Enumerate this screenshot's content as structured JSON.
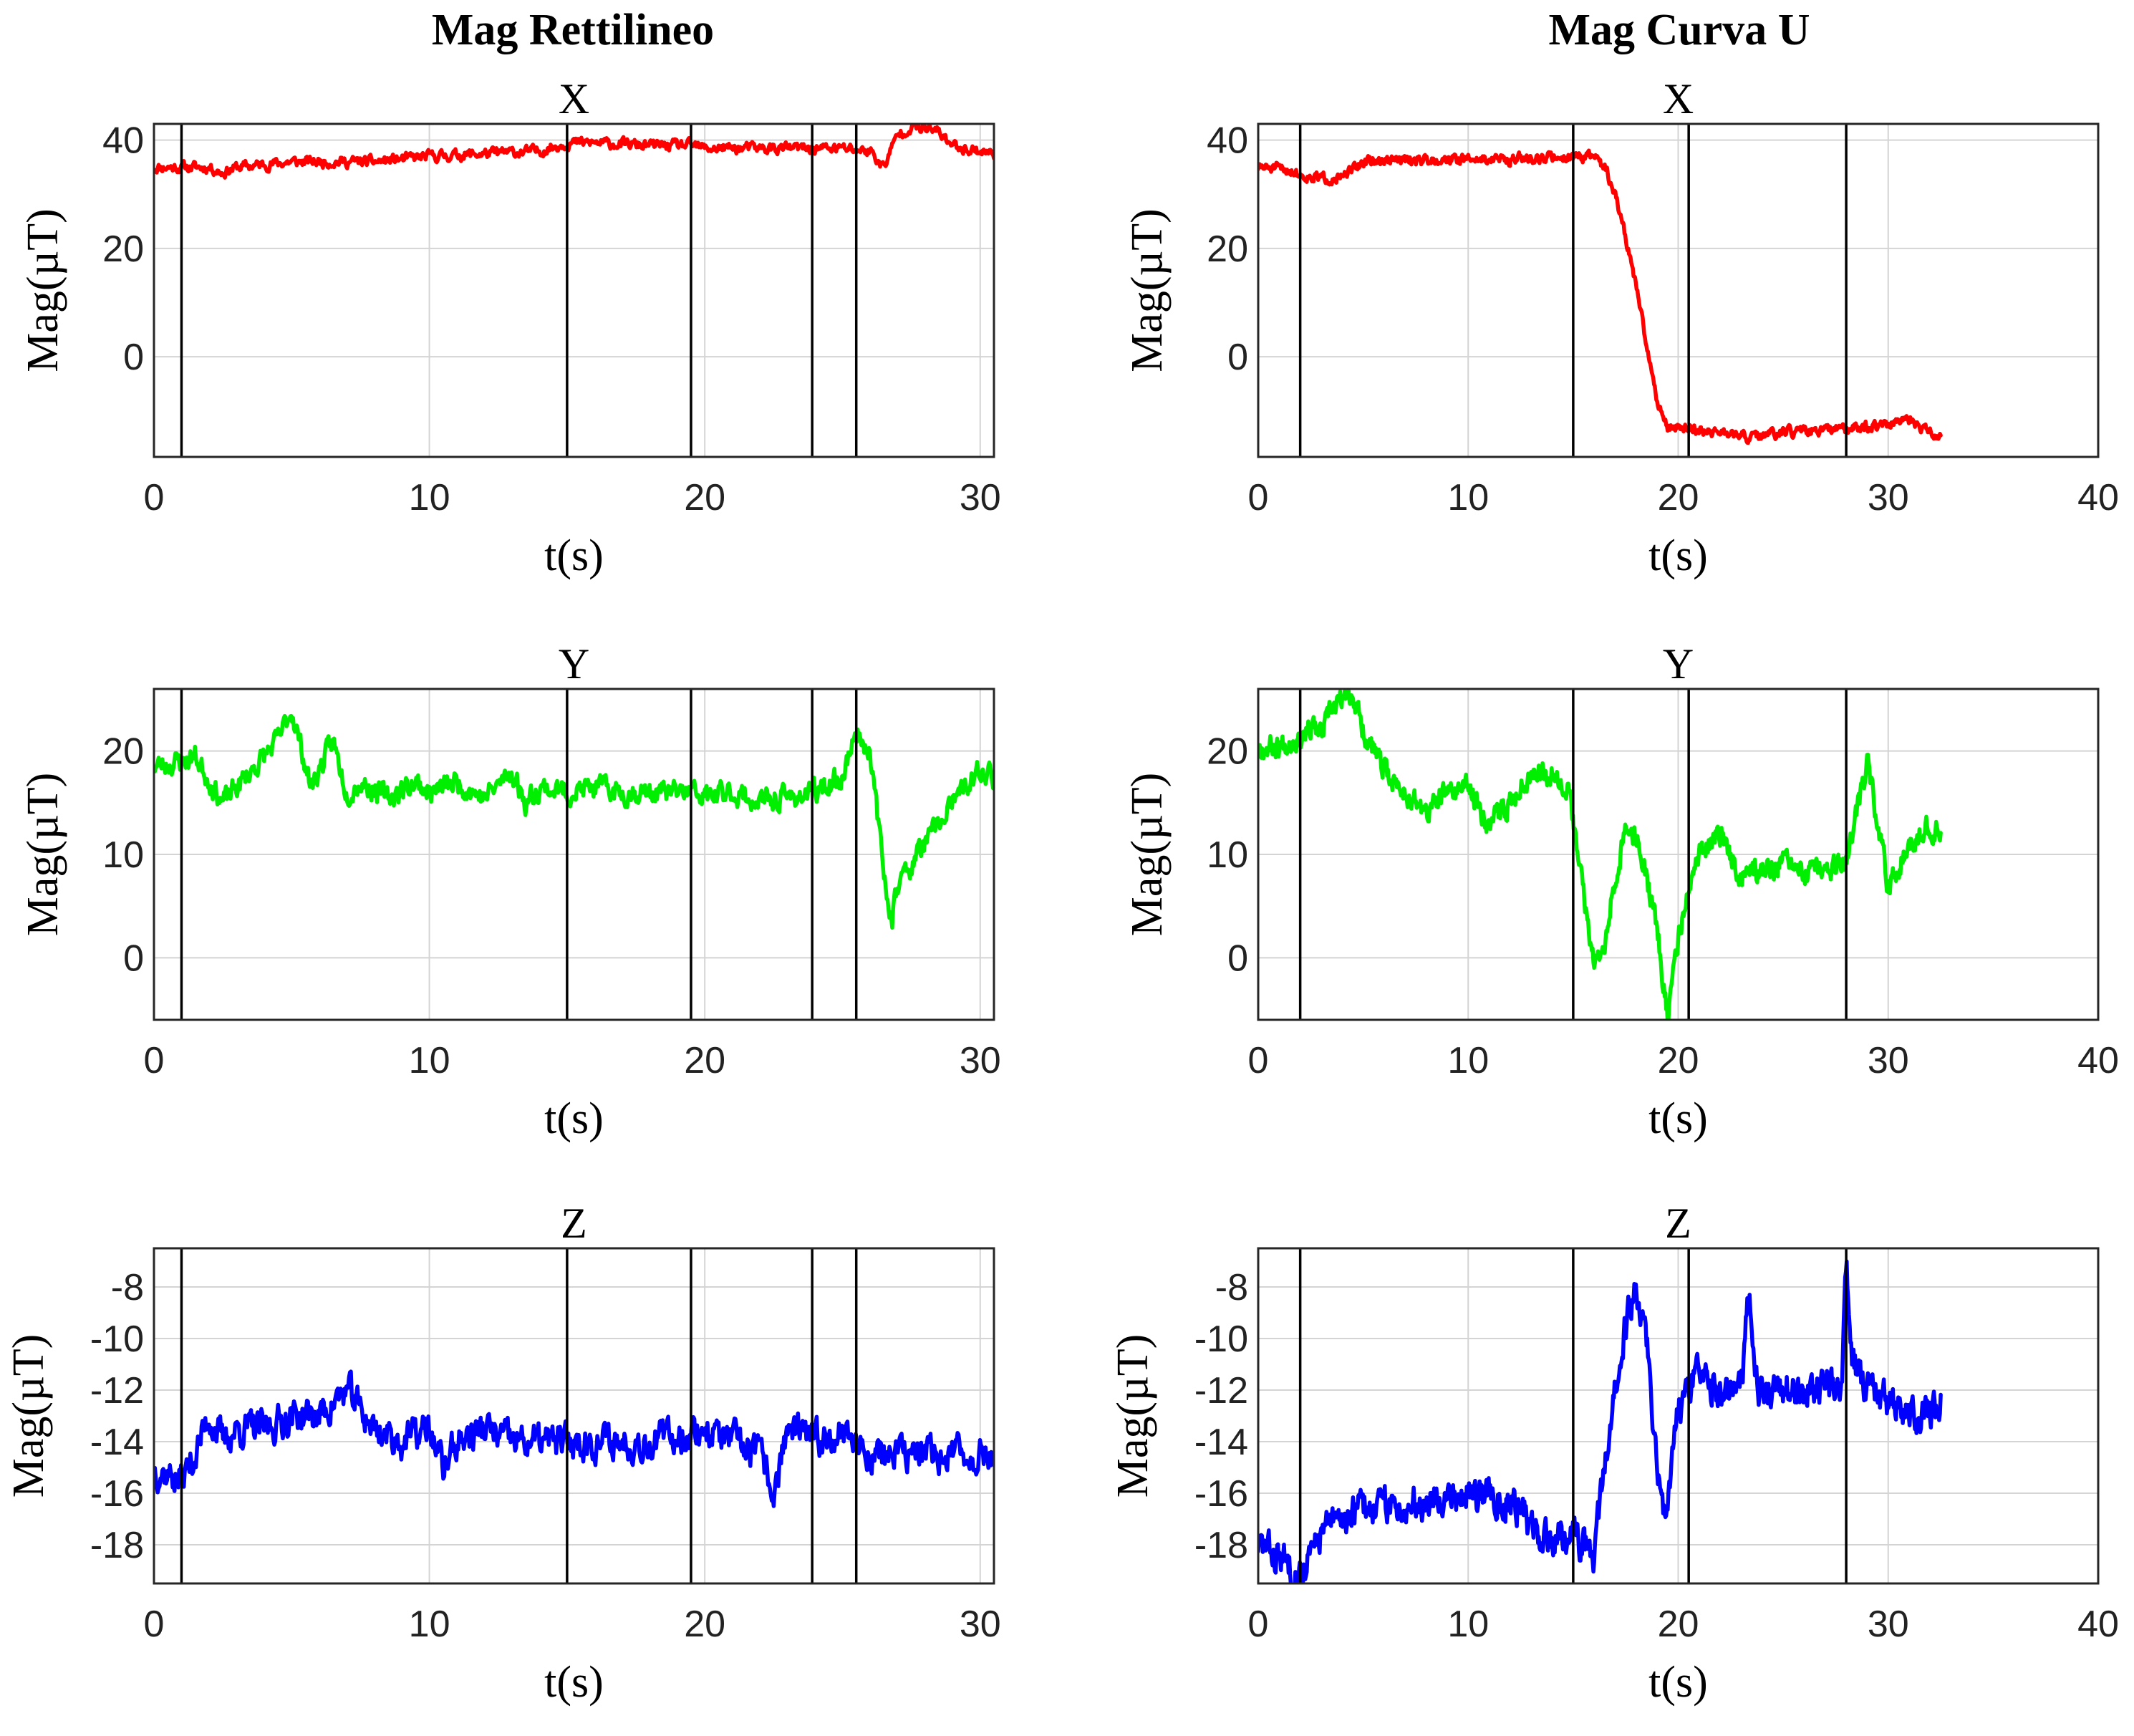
{
  "figure": {
    "column_titles": [
      "Mag Rettilineo",
      "Mag Curva U"
    ]
  },
  "colors": {
    "X": "#ff0000",
    "Y": "#00ee00",
    "Z": "#0000ff"
  },
  "chart_data": [
    {
      "id": "rett-x",
      "type": "line",
      "title": "X",
      "xlabel": "t(s)",
      "ylabel": "Mag(µT)",
      "xlim": [
        0,
        30.5
      ],
      "ylim": [
        -18.5,
        43
      ],
      "xticks": [
        0,
        10,
        20,
        30
      ],
      "yticks": [
        0,
        20,
        40
      ],
      "vlines": [
        1.0,
        15.0,
        19.5,
        23.9,
        25.5
      ],
      "color": "#ff0000",
      "seed": 11,
      "noise": 0.8,
      "x": [
        0,
        1,
        2,
        2.5,
        3,
        5,
        8,
        10,
        12,
        14,
        15,
        16,
        18,
        19.5,
        20,
        22,
        23.9,
        25,
        26,
        26.5,
        27,
        27.5,
        28.5,
        29,
        30,
        30.5
      ],
      "y": [
        35,
        35,
        35,
        34,
        35,
        36,
        36,
        37,
        37.5,
        38,
        39.5,
        39.5,
        39,
        39,
        38.5,
        38.5,
        38.5,
        38.5,
        38,
        35,
        41,
        42.5,
        41.5,
        39,
        38,
        37.5
      ]
    },
    {
      "id": "rett-y",
      "type": "line",
      "title": "Y",
      "xlabel": "t(s)",
      "ylabel": "Mag(µT)",
      "xlim": [
        0,
        30.5
      ],
      "ylim": [
        -6,
        26
      ],
      "xticks": [
        0,
        10,
        20,
        30
      ],
      "yticks": [
        0,
        10,
        20
      ],
      "vlines": [
        1.0,
        15.0,
        19.5,
        23.9,
        25.5
      ],
      "color": "#00ee00",
      "seed": 23,
      "noise": 0.9,
      "x": [
        0,
        1,
        1.5,
        2.5,
        3.5,
        4.5,
        5,
        5.7,
        6.5,
        7,
        7.5,
        8.5,
        9.5,
        10,
        11,
        12,
        13,
        13.5,
        14,
        15,
        16,
        17,
        18,
        19.5,
        20,
        21,
        22,
        23,
        24,
        25,
        25.5,
        26,
        26.5,
        26.8,
        27,
        28,
        29,
        30,
        30.5
      ],
      "y": [
        18.5,
        19,
        19.5,
        15,
        18,
        21,
        24,
        16.5,
        21,
        16,
        17,
        15.5,
        17,
        16,
        17,
        15.5,
        18,
        15,
        16.5,
        16,
        16.5,
        16,
        16,
        16,
        15.5,
        16,
        15,
        15.5,
        16,
        17.5,
        22,
        20,
        8,
        4,
        7,
        11,
        15,
        18,
        17.5
      ]
    },
    {
      "id": "rett-z",
      "type": "line",
      "title": "Z",
      "xlabel": "t(s)",
      "ylabel": "Mag(µT)",
      "xlim": [
        0,
        30.5
      ],
      "ylim": [
        -19.5,
        -6.5
      ],
      "xticks": [
        0,
        10,
        20,
        30
      ],
      "yticks": [
        -18,
        -16,
        -14,
        -12,
        -10,
        -8
      ],
      "vlines": [
        1.0,
        15.0,
        19.5,
        23.9,
        25.5
      ],
      "color": "#0000ff",
      "seed": 37,
      "noise": 0.55,
      "x": [
        0,
        1,
        1.5,
        2,
        2.5,
        3,
        4,
        5,
        6,
        7,
        8,
        9,
        10,
        10.5,
        11,
        12,
        13,
        14,
        15,
        16,
        18,
        20,
        21,
        22,
        22.5,
        23,
        24,
        25,
        26,
        27,
        28,
        29,
        30,
        30.5
      ],
      "y": [
        -15,
        -15.5,
        -14.5,
        -13,
        -14,
        -13.5,
        -13.5,
        -13,
        -13,
        -12,
        -13.5,
        -14,
        -13.5,
        -15,
        -14,
        -13.5,
        -14,
        -14,
        -14,
        -14,
        -14,
        -13.5,
        -14,
        -14.5,
        -16,
        -13.5,
        -14,
        -13.5,
        -14.5,
        -14.5,
        -14.5,
        -14.5,
        -14.5,
        -14.5
      ]
    },
    {
      "id": "curva-x",
      "type": "line",
      "title": "X",
      "xlabel": "t(s)",
      "ylabel": "Mag(µT)",
      "xlim": [
        0,
        40
      ],
      "ylim": [
        -18.5,
        43
      ],
      "xticks": [
        0,
        10,
        20,
        30,
        40
      ],
      "yticks": [
        0,
        20,
        40
      ],
      "vlines": [
        2.0,
        15.0,
        20.5,
        28.0
      ],
      "color": "#ff0000",
      "seed": 51,
      "noise": 0.75,
      "x": [
        0,
        1.5,
        2,
        3,
        4,
        5,
        8,
        12,
        15,
        16,
        16.5,
        17,
        17.5,
        18,
        18.5,
        19,
        19.5,
        20,
        22,
        23.5,
        25,
        28,
        28.5,
        30,
        31,
        32,
        32.5
      ],
      "y": [
        35,
        34.5,
        33.5,
        33,
        33,
        36,
        36.5,
        36.5,
        37,
        37,
        35,
        30,
        22,
        13,
        2,
        -8,
        -13,
        -13,
        -14,
        -15,
        -14,
        -13.5,
        -13,
        -12.5,
        -12,
        -14,
        -15
      ]
    },
    {
      "id": "curva-y",
      "type": "line",
      "title": "Y",
      "xlabel": "t(s)",
      "ylabel": "Mag(µT)",
      "xlim": [
        0,
        40
      ],
      "ylim": [
        -6,
        26
      ],
      "xticks": [
        0,
        10,
        20,
        30,
        40
      ],
      "yticks": [
        0,
        10,
        20
      ],
      "vlines": [
        2.0,
        15.0,
        20.5,
        28.0
      ],
      "color": "#00ee00",
      "seed": 67,
      "noise": 0.9,
      "x": [
        0,
        1,
        2,
        2.5,
        3,
        3.5,
        4,
        4.5,
        5,
        6,
        7,
        8,
        9,
        10,
        11,
        12,
        13,
        14,
        14.8,
        15,
        16,
        16.5,
        17,
        17.5,
        18,
        19,
        19.5,
        20,
        21,
        22,
        23,
        24,
        25,
        26,
        27,
        28,
        28.5,
        29,
        29.5,
        30,
        31,
        32,
        32.5
      ],
      "y": [
        20.5,
        20.5,
        21.5,
        22.5,
        21.5,
        24,
        25,
        25.5,
        22,
        18,
        16,
        14,
        16,
        16.5,
        13,
        15,
        18,
        18,
        16.5,
        13,
        -1,
        2,
        8,
        12,
        12,
        3,
        -6,
        2,
        10,
        12,
        8,
        8.5,
        9,
        8,
        8.5,
        9,
        14,
        18.5,
        13,
        7,
        11,
        13,
        12
      ]
    },
    {
      "id": "curva-z",
      "type": "line",
      "title": "Z",
      "xlabel": "t(s)",
      "ylabel": "Mag(µT)",
      "xlim": [
        0,
        40
      ],
      "ylim": [
        -19.5,
        -6.5
      ],
      "xticks": [
        0,
        10,
        20,
        30,
        40
      ],
      "yticks": [
        -18,
        -16,
        -14,
        -12,
        -10,
        -8
      ],
      "vlines": [
        2.0,
        15.0,
        20.5,
        28.0
      ],
      "color": "#0000ff",
      "seed": 83,
      "noise": 0.55,
      "x": [
        0,
        1,
        2,
        2.5,
        3,
        4,
        5,
        7,
        9,
        11,
        12.5,
        13.5,
        14.5,
        15,
        15.5,
        16,
        16.5,
        17,
        17.5,
        18,
        18.5,
        19,
        19.3,
        19.6,
        20,
        20.5,
        21,
        22,
        23,
        23.4,
        23.8,
        25,
        27,
        27.8,
        28,
        28.3,
        29,
        30,
        31,
        32,
        32.5
      ],
      "y": [
        -18,
        -18.5,
        -19,
        -18.5,
        -17.5,
        -17,
        -16.5,
        -16.5,
        -16,
        -16,
        -16.5,
        -18,
        -17.5,
        -17.5,
        -18,
        -18.5,
        -15,
        -12,
        -9.5,
        -8,
        -10,
        -15,
        -16.5,
        -15.5,
        -13,
        -12,
        -11.5,
        -12,
        -12,
        -8,
        -12,
        -12,
        -12,
        -12,
        -7,
        -11,
        -12,
        -12.5,
        -13,
        -13,
        -12.5
      ]
    }
  ]
}
